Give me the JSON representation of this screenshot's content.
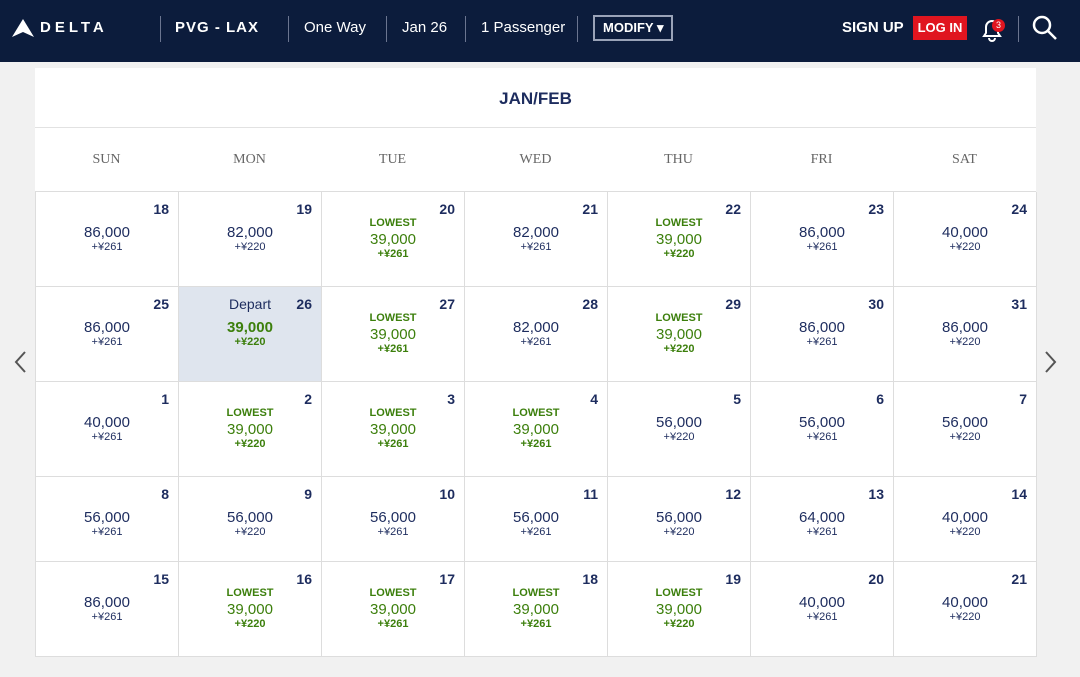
{
  "header": {
    "logo": "DELTA",
    "route": "PVG - LAX",
    "trip": "One Way",
    "date": "Jan 26",
    "passengers": "1 Passenger",
    "modify": "MODIFY",
    "signup": "SIGN UP",
    "login": "LOG IN",
    "badge": "3"
  },
  "calendar": {
    "title": "JAN/FEB",
    "weekdays": [
      "SUN",
      "MON",
      "TUE",
      "WED",
      "THU",
      "FRI",
      "SAT"
    ],
    "weeks": [
      [
        {
          "day": 18,
          "price": "86,000",
          "fee": "+¥261"
        },
        {
          "day": 19,
          "price": "82,000",
          "fee": "+¥220"
        },
        {
          "day": 20,
          "tag": "LOWEST",
          "price": "39,000",
          "fee": "+¥261"
        },
        {
          "day": 21,
          "price": "82,000",
          "fee": "+¥261"
        },
        {
          "day": 22,
          "tag": "LOWEST",
          "price": "39,000",
          "fee": "+¥220"
        },
        {
          "day": 23,
          "price": "86,000",
          "fee": "+¥261"
        },
        {
          "day": 24,
          "price": "40,000",
          "fee": "+¥220"
        }
      ],
      [
        {
          "day": 25,
          "price": "86,000",
          "fee": "+¥261"
        },
        {
          "day": 26,
          "tag": "Depart",
          "price": "39,000",
          "fee": "+¥220"
        },
        {
          "day": 27,
          "tag": "LOWEST",
          "price": "39,000",
          "fee": "+¥261"
        },
        {
          "day": 28,
          "price": "82,000",
          "fee": "+¥261"
        },
        {
          "day": 29,
          "tag": "LOWEST",
          "price": "39,000",
          "fee": "+¥220"
        },
        {
          "day": 30,
          "price": "86,000",
          "fee": "+¥261"
        },
        {
          "day": 31,
          "price": "86,000",
          "fee": "+¥220"
        }
      ],
      [
        {
          "day": 1,
          "price": "40,000",
          "fee": "+¥261"
        },
        {
          "day": 2,
          "tag": "LOWEST",
          "price": "39,000",
          "fee": "+¥220"
        },
        {
          "day": 3,
          "tag": "LOWEST",
          "price": "39,000",
          "fee": "+¥261"
        },
        {
          "day": 4,
          "tag": "LOWEST",
          "price": "39,000",
          "fee": "+¥261"
        },
        {
          "day": 5,
          "price": "56,000",
          "fee": "+¥220"
        },
        {
          "day": 6,
          "price": "56,000",
          "fee": "+¥261"
        },
        {
          "day": 7,
          "price": "56,000",
          "fee": "+¥220"
        }
      ],
      [
        {
          "day": 8,
          "price": "56,000",
          "fee": "+¥261"
        },
        {
          "day": 9,
          "price": "56,000",
          "fee": "+¥220"
        },
        {
          "day": 10,
          "price": "56,000",
          "fee": "+¥261"
        },
        {
          "day": 11,
          "price": "56,000",
          "fee": "+¥261"
        },
        {
          "day": 12,
          "price": "56,000",
          "fee": "+¥220"
        },
        {
          "day": 13,
          "price": "64,000",
          "fee": "+¥261"
        },
        {
          "day": 14,
          "price": "40,000",
          "fee": "+¥220"
        }
      ],
      [
        {
          "day": 15,
          "price": "86,000",
          "fee": "+¥261"
        },
        {
          "day": 16,
          "tag": "LOWEST",
          "price": "39,000",
          "fee": "+¥220"
        },
        {
          "day": 17,
          "tag": "LOWEST",
          "price": "39,000",
          "fee": "+¥261"
        },
        {
          "day": 18,
          "tag": "LOWEST",
          "price": "39,000",
          "fee": "+¥261"
        },
        {
          "day": 19,
          "tag": "LOWEST",
          "price": "39,000",
          "fee": "+¥220"
        },
        {
          "day": 20,
          "price": "40,000",
          "fee": "+¥261"
        },
        {
          "day": 21,
          "price": "40,000",
          "fee": "+¥220"
        }
      ]
    ]
  }
}
